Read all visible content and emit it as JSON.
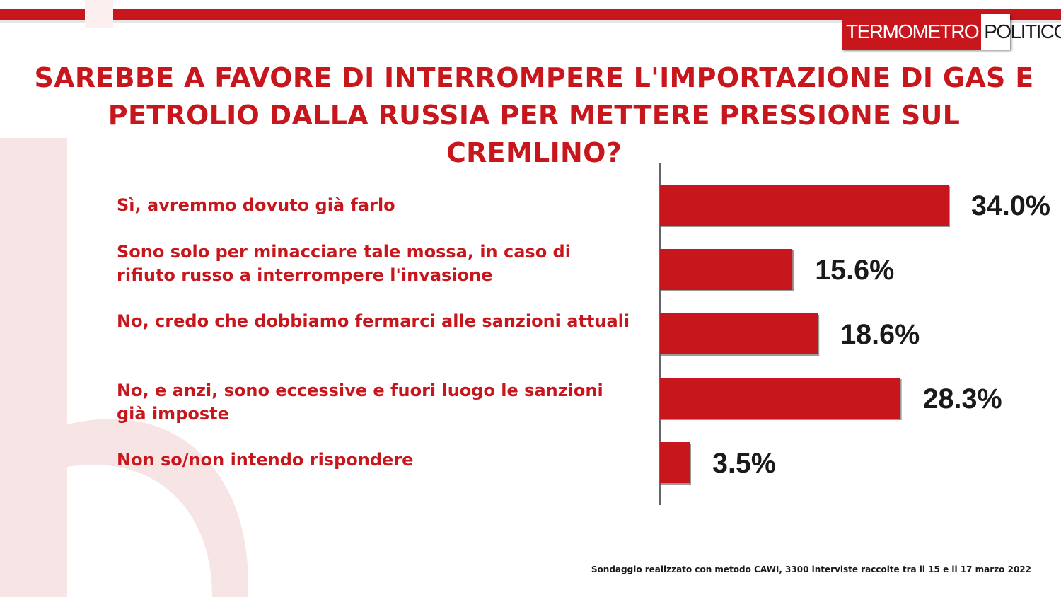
{
  "header": {
    "logo_part1": "TERMOMETRO",
    "logo_part2": "POLITICO"
  },
  "colors": {
    "brand_red": "#c8161d",
    "bar_red": "#c8161d",
    "text_dark": "#1a1a1a"
  },
  "chart_data": {
    "type": "bar",
    "orientation": "horizontal",
    "title": "SAREBBE A FAVORE DI INTERROMPERE L'IMPORTAZIONE DI GAS E PETROLIO DALLA RUSSIA PER METTERE PRESSIONE SUL CREMLINO?",
    "categories": [
      "Sì, avremmo dovuto già  farlo",
      "Sono solo per minacciare tale mossa, in caso di rifiuto russo a interrompere l'invasione",
      "No, credo che dobbiamo fermarci alle sanzioni attuali",
      "No, e anzi, sono eccessive e fuori luogo le sanzioni già  imposte",
      "Non so/non intendo rispondere"
    ],
    "values": [
      34.0,
      15.6,
      18.6,
      28.3,
      3.5
    ],
    "value_labels": [
      "34.0%",
      "15.6%",
      "18.6%",
      "28.3%",
      "3.5%"
    ],
    "unit": "%",
    "xlim": [
      0,
      40
    ],
    "grid": false,
    "legend": "none"
  },
  "footnote": "Sondaggio realizzato con metodo CAWI, 3300 interviste raccolte tra il 15 e il 17 marzo 2022"
}
